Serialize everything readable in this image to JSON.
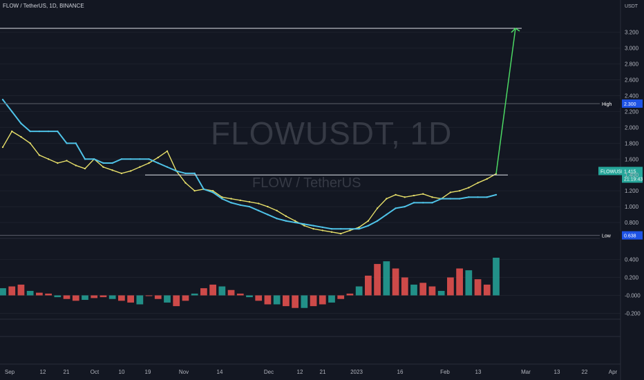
{
  "header": {
    "symbol_line": "FLOW / TetherUS, 1D, BINANCE"
  },
  "watermark": {
    "main": "FLOWUSDT, 1D",
    "sub": "FLOW / TetherUS"
  },
  "price_axis": {
    "unit": "USDT",
    "ticks": [
      "3.200",
      "3.000",
      "2.800",
      "2.600",
      "2.400",
      "2.200",
      "2.000",
      "1.800",
      "1.600",
      "1.400",
      "1.200",
      "1.000",
      "0.800"
    ],
    "tick_values": [
      3.2,
      3.0,
      2.8,
      2.6,
      2.4,
      2.2,
      2.0,
      1.8,
      1.6,
      1.4,
      1.2,
      1.0,
      0.8
    ]
  },
  "labels": {
    "high": {
      "text": "High",
      "value": "2.300"
    },
    "low": {
      "text": "Low",
      "value": "0.638"
    },
    "current": {
      "symbol": "FLOWUSDT",
      "price": "1.415",
      "countdown": "21:19:43"
    }
  },
  "osc_axis": {
    "ticks": [
      "0.400",
      "0.200",
      "-0.000",
      "-0.200"
    ],
    "tick_values": [
      0.4,
      0.2,
      0.0,
      -0.2
    ]
  },
  "time_axis": {
    "labels": [
      "Sep",
      "12",
      "21",
      "Oct",
      "10",
      "19",
      "Nov",
      "14",
      "Dec",
      "12",
      "21",
      "2023",
      "16",
      "Feb",
      "13",
      "Mar",
      "13",
      "22",
      "Apr"
    ]
  },
  "chart_data": {
    "type": "line",
    "title": "FLOW / TetherUS, 1D, BINANCE",
    "ylim": [
      0.6,
      3.45
    ],
    "high": 2.3,
    "low": 0.638,
    "current_price": 1.415,
    "horizontal_levels": [
      3.25,
      2.3,
      1.4,
      0.638
    ],
    "target_arrow": {
      "from": 1.415,
      "to": 3.25
    },
    "series": [
      {
        "values": [
          1.75,
          1.95,
          1.88,
          1.8,
          1.65,
          1.6,
          1.55,
          1.58,
          1.52,
          1.48,
          1.6,
          1.5,
          1.46,
          1.42,
          1.45,
          1.5,
          1.55,
          1.62,
          1.7,
          1.45,
          1.3,
          1.2,
          1.22,
          1.2,
          1.12,
          1.1,
          1.08,
          1.06,
          1.04,
          1.0,
          0.95,
          0.88,
          0.82,
          0.76,
          0.72,
          0.7,
          0.68,
          0.66,
          0.7,
          0.74,
          0.82,
          0.98,
          1.1,
          1.15,
          1.12,
          1.14,
          1.16,
          1.12,
          1.1,
          1.18,
          1.2,
          1.24,
          1.3,
          1.35,
          1.415
        ],
        "color": "#e8e06a"
      },
      {
        "values": [
          2.35,
          2.2,
          2.05,
          1.95,
          1.95,
          1.95,
          1.95,
          1.8,
          1.8,
          1.6,
          1.6,
          1.55,
          1.55,
          1.6,
          1.6,
          1.6,
          1.6,
          1.55,
          1.5,
          1.45,
          1.42,
          1.42,
          1.22,
          1.18,
          1.1,
          1.05,
          1.02,
          1.0,
          0.95,
          0.9,
          0.85,
          0.82,
          0.8,
          0.78,
          0.76,
          0.74,
          0.72,
          0.72,
          0.72,
          0.72,
          0.76,
          0.82,
          0.9,
          0.98,
          1.0,
          1.05,
          1.05,
          1.05,
          1.1,
          1.1,
          1.1,
          1.12,
          1.12,
          1.12,
          1.15
        ],
        "color": "#4fc3e8"
      }
    ],
    "oscillator": {
      "ylim": [
        -0.25,
        0.52
      ],
      "values": [
        0.08,
        0.1,
        0.12,
        0.05,
        0.03,
        0.02,
        -0.02,
        -0.04,
        -0.06,
        -0.05,
        -0.03,
        -0.02,
        -0.04,
        -0.06,
        -0.08,
        -0.1,
        0.0,
        -0.04,
        -0.08,
        -0.12,
        -0.06,
        0.02,
        0.08,
        0.12,
        0.1,
        0.06,
        0.02,
        -0.02,
        -0.06,
        -0.1,
        -0.1,
        -0.12,
        -0.14,
        -0.14,
        -0.12,
        -0.1,
        -0.08,
        -0.04,
        0.02,
        0.1,
        0.22,
        0.35,
        0.38,
        0.3,
        0.2,
        0.12,
        0.14,
        0.1,
        0.05,
        0.2,
        0.3,
        0.28,
        0.18,
        0.12,
        0.42
      ],
      "colors": {
        "up": "#26a69a",
        "down": "#ef5350"
      }
    }
  }
}
